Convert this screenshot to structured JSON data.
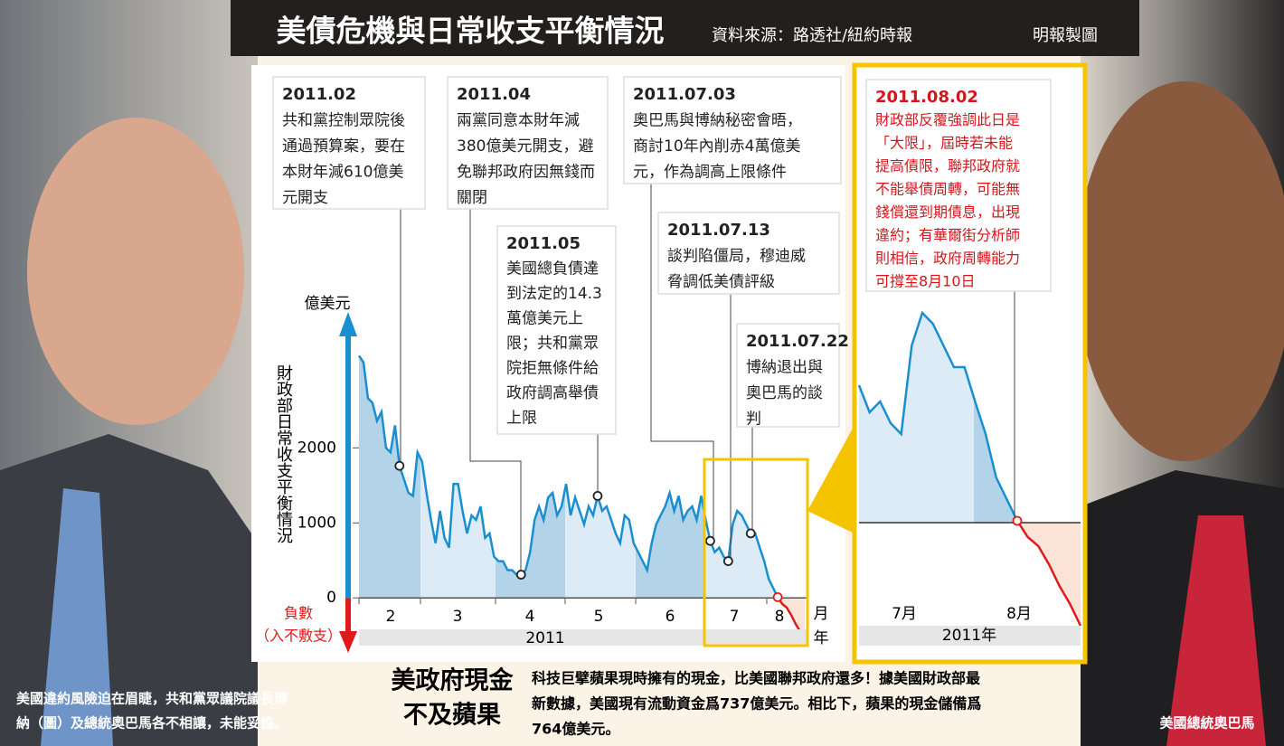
{
  "header": {
    "title": "美債危機與日常收支平衡情況",
    "source": "資料來源：路透社/紐約時報",
    "credit": "明報製圖"
  },
  "chart_data": {
    "type": "line",
    "y_label": "億美元",
    "y_title": "財政部日常收支平衡情況",
    "negative_label": [
      "負數",
      "（入不敷支）"
    ],
    "months": [
      "2",
      "3",
      "4",
      "5",
      "6",
      "7",
      "8"
    ],
    "month_unit": "月",
    "year_unit": "年",
    "year": "2011",
    "values": [
      3230,
      3140,
      2660,
      2600,
      2360,
      2480,
      2000,
      1940,
      2300,
      1760,
      1580,
      1400,
      1360,
      1940,
      1820,
      1400,
      1040,
      730,
      1160,
      800,
      670,
      1520,
      1520,
      1160,
      860,
      1100,
      1040,
      1220,
      800,
      860,
      550,
      490,
      490,
      370,
      370,
      310,
      310,
      370,
      610,
      1040,
      1220,
      1040,
      1340,
      1400,
      1100,
      1220,
      1520,
      1100,
      1340,
      1160,
      980,
      1220,
      1100,
      1360,
      1160,
      1220,
      1040,
      860,
      730,
      1100,
      1040,
      730,
      610,
      490,
      370,
      730,
      980,
      1100,
      1220,
      1400,
      1160,
      1360,
      1040,
      1160,
      1220,
      1040,
      1360,
      1040,
      760,
      610,
      670,
      550,
      490,
      980,
      1160,
      1100,
      980,
      860,
      860,
      670,
      490,
      250,
      130,
      10,
      -80,
      -130,
      -230,
      -350,
      -450,
      -570
    ],
    "color": "#1a8fd0",
    "negative_color": "#e01a1a",
    "ylim": [
      -600,
      3800
    ],
    "yticks": [
      0,
      1000,
      2000
    ],
    "annotations": [
      {
        "date": "2011.02",
        "lines": [
          "共和黨控制眾院後",
          "通過預算案，要在",
          "本財年減610億美",
          "元開支"
        ]
      },
      {
        "date": "2011.04",
        "lines": [
          "兩黨同意本財年減",
          "380億美元開支，避",
          "免聯邦政府因無錢而",
          "關閉"
        ]
      },
      {
        "date": "2011.05",
        "lines": [
          "美國總負債達",
          "到法定的14.3",
          "萬億美元上",
          "限；共和黨眾",
          "院拒無條件給",
          "政府調高舉債",
          "上限"
        ]
      },
      {
        "date": "2011.07.03",
        "lines": [
          "奧巴馬與博納秘密會晤，",
          "商討10年內削赤4萬億美",
          "元，作為調高上限條件"
        ]
      },
      {
        "date": "2011.07.13",
        "lines": [
          "談判陷僵局，穆迪威",
          "脅調低美債評級"
        ]
      },
      {
        "date": "2011.07.22",
        "lines": [
          "博納退出與",
          "奧巴馬的談",
          "判"
        ]
      },
      {
        "date": "2011.08.02",
        "lines": [
          "財政部反覆強調此日是",
          "「大限」，屆時若未能",
          "提高債限，聯邦政府就",
          "不能舉債周轉，可能無",
          "錢償還到期債息，出現",
          "違約；有華爾街分析師",
          "則相信，政府周轉能力",
          "可撐至8月10日"
        ]
      }
    ],
    "inset": {
      "months": [
        "7月",
        "8月"
      ],
      "year": "2011年"
    }
  },
  "sidebar": {
    "heading": [
      "美政府現金",
      "不及蘋果"
    ],
    "body": [
      "科技巨擘蘋果現時擁有的現金，比美國聯邦政府還多！據美國財政部最",
      "新數據，美國現有流動資金爲737億美元。相比下，蘋果的現金儲備爲",
      "764億美元。"
    ]
  },
  "captions": {
    "left": [
      "美國違約風險迫在眉睫，共和黨眾議院議長博",
      "納（圖）及總統奧巴馬各不相讓，未能妥協。"
    ],
    "right": "美國總統奧巴馬"
  }
}
